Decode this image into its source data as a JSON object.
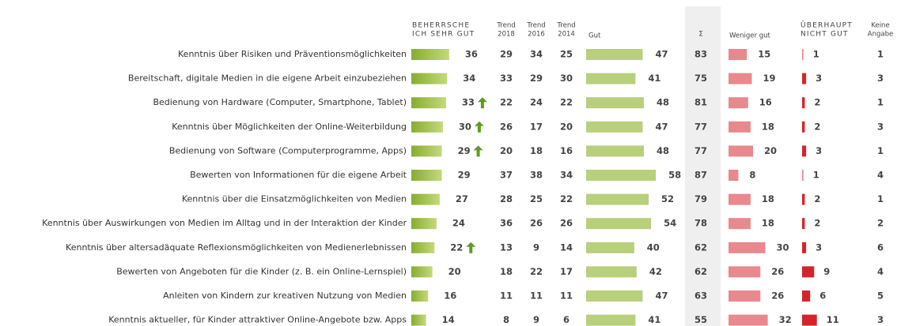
{
  "headers": {
    "very_good": [
      "BEHERRSCHE",
      "ICH SEHR GUT"
    ],
    "trend_2018": [
      "Trend",
      "2018"
    ],
    "trend_2016": [
      "Trend",
      "2016"
    ],
    "trend_2014": [
      "Trend",
      "2014"
    ],
    "good": "Gut",
    "sum": "Σ",
    "less_good": "Weniger gut",
    "not_good": [
      "ÜBERHAUPT",
      "NICHT GUT"
    ],
    "no_answer": [
      "Keine",
      "Angabe"
    ]
  },
  "rows": [
    {
      "label": "Kenntnis über Risiken und Präventionsmöglichkeiten",
      "very_good": 36,
      "up": false,
      "trend_2018": 29,
      "trend_2016": 34,
      "trend_2014": 25,
      "good": 47,
      "sum": 83,
      "less_good": 15,
      "not_good": 1,
      "no_answer": 1
    },
    {
      "label": "Bereitschaft, digitale Medien in die eigene Arbeit einzubeziehen",
      "very_good": 34,
      "up": false,
      "trend_2018": 33,
      "trend_2016": 29,
      "trend_2014": 30,
      "good": 41,
      "sum": 75,
      "less_good": 19,
      "not_good": 3,
      "no_answer": 3
    },
    {
      "label": "Bedienung von Hardware (Computer, Smartphone, Tablet)",
      "very_good": 33,
      "up": true,
      "trend_2018": 22,
      "trend_2016": 24,
      "trend_2014": 22,
      "good": 48,
      "sum": 81,
      "less_good": 16,
      "not_good": 2,
      "no_answer": 1
    },
    {
      "label": "Kenntnis über Möglichkeiten der Online-Weiterbildung",
      "very_good": 30,
      "up": true,
      "trend_2018": 26,
      "trend_2016": 17,
      "trend_2014": 20,
      "good": 47,
      "sum": 77,
      "less_good": 18,
      "not_good": 2,
      "no_answer": 3
    },
    {
      "label": "Bedienung von Software (Computerprogramme, Apps)",
      "very_good": 29,
      "up": true,
      "trend_2018": 20,
      "trend_2016": 18,
      "trend_2014": 16,
      "good": 48,
      "sum": 77,
      "less_good": 20,
      "not_good": 3,
      "no_answer": 1
    },
    {
      "label": "Bewerten von Informationen für die eigene Arbeit",
      "very_good": 29,
      "up": false,
      "trend_2018": 37,
      "trend_2016": 38,
      "trend_2014": 34,
      "good": 58,
      "sum": 87,
      "less_good": 8,
      "not_good": 1,
      "no_answer": 4
    },
    {
      "label": "Kenntnis über die Einsatzmöglichkeiten von Medien",
      "very_good": 27,
      "up": false,
      "trend_2018": 28,
      "trend_2016": 25,
      "trend_2014": 22,
      "good": 52,
      "sum": 79,
      "less_good": 18,
      "not_good": 2,
      "no_answer": 1
    },
    {
      "label": "Kenntnis über Auswirkungen von Medien im Alltag und in der Interaktion der Kinder",
      "very_good": 24,
      "up": false,
      "trend_2018": 36,
      "trend_2016": 26,
      "trend_2014": 26,
      "good": 54,
      "sum": 78,
      "less_good": 18,
      "not_good": 2,
      "no_answer": 2
    },
    {
      "label": "Kenntnis über altersadäquate Reflexionsmöglichkeiten von Medienerlebnissen",
      "very_good": 22,
      "up": true,
      "trend_2018": 13,
      "trend_2016": 9,
      "trend_2014": 14,
      "good": 40,
      "sum": 62,
      "less_good": 30,
      "not_good": 3,
      "no_answer": 6
    },
    {
      "label": "Bewerten von Angeboten für die Kinder (z. B. ein Online-Lernspiel)",
      "very_good": 20,
      "up": false,
      "trend_2018": 18,
      "trend_2016": 22,
      "trend_2014": 17,
      "good": 42,
      "sum": 62,
      "less_good": 26,
      "not_good": 9,
      "no_answer": 4
    },
    {
      "label": "Anleiten von Kindern zur kreativen Nutzung von Medien",
      "very_good": 16,
      "up": false,
      "trend_2018": 11,
      "trend_2016": 11,
      "trend_2014": 11,
      "good": 47,
      "sum": 63,
      "less_good": 26,
      "not_good": 6,
      "no_answer": 5
    },
    {
      "label": "Kenntnis aktueller, für Kinder attraktiver Online-Angebote bzw. Apps",
      "very_good": 14,
      "up": false,
      "trend_2018": 8,
      "trend_2016": 9,
      "trend_2014": 6,
      "good": 41,
      "sum": 55,
      "less_good": 32,
      "not_good": 11,
      "no_answer": 3
    }
  ]
}
